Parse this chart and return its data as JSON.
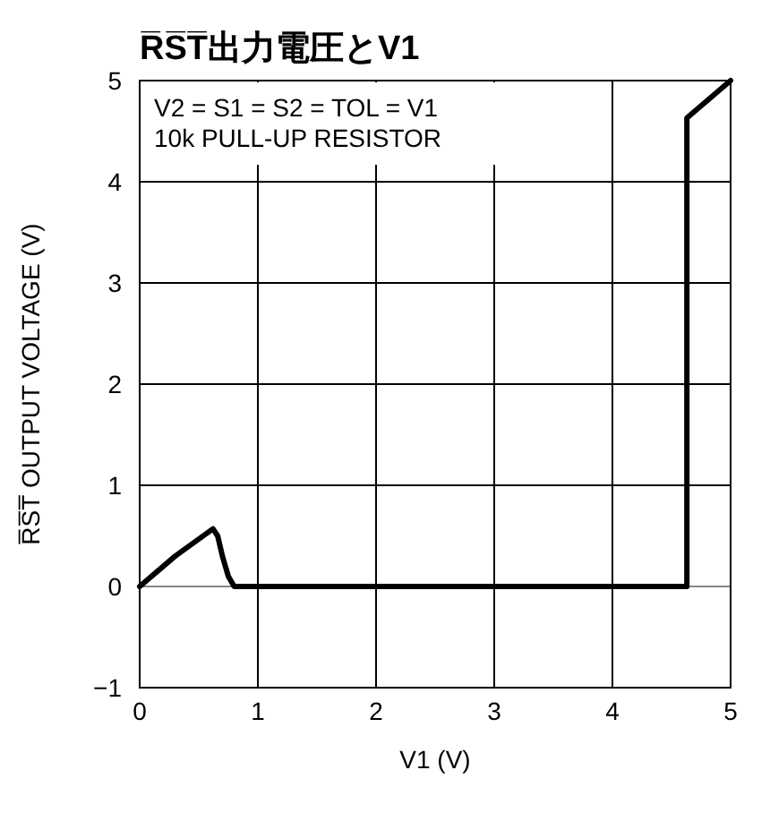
{
  "chart_data": {
    "type": "line",
    "title": "R̅S̅T̅出力電圧とV1",
    "xlabel": "V1 (V)",
    "ylabel": "R̅S̅T̅ OUTPUT VOLTAGE (V)",
    "annotations": [
      "V2 = S1 = S2 = TOL = V1",
      "10k PULL-UP RESISTOR"
    ],
    "series": [
      {
        "color": "#000000",
        "x": [
          0,
          0.3,
          0.62,
          0.66,
          0.7,
          0.75,
          0.8,
          4.63,
          4.63,
          5
        ],
        "values": [
          0,
          0.3,
          0.57,
          0.5,
          0.3,
          0.1,
          0,
          0,
          4.63,
          5
        ]
      }
    ],
    "xlim": [
      0,
      5
    ],
    "ylim": [
      -1,
      5
    ],
    "xticks": [
      0,
      1,
      2,
      3,
      4,
      5
    ],
    "yticks": [
      -1,
      0,
      1,
      2,
      3,
      4,
      5
    ],
    "grid": true,
    "line_style": "solid",
    "marker": "none"
  }
}
